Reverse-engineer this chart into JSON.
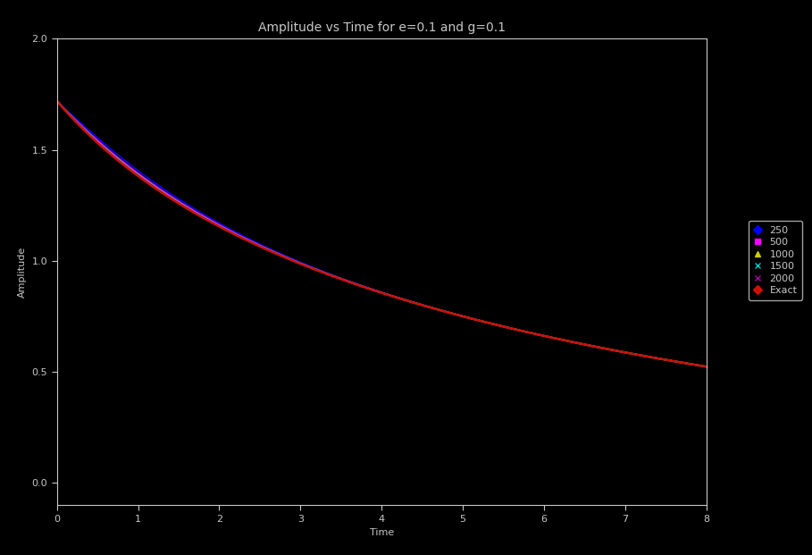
{
  "title": "Amplitude vs Time for e=0.1 and g=0.1",
  "xlabel": "Time",
  "ylabel": "Amplitude",
  "background_color": "#000000",
  "text_color": "#c8c8c8",
  "xlim": [
    0,
    8
  ],
  "ylim": [
    -0.1,
    2.0
  ],
  "yticks": [
    0.0,
    0.5,
    1.0,
    1.5,
    2.0
  ],
  "xticks": [
    0,
    1,
    2,
    3,
    4,
    5,
    6,
    7,
    8
  ],
  "series": [
    {
      "label": "250",
      "color": "#0000ff",
      "lw": 1.2,
      "N": 250
    },
    {
      "label": "500",
      "color": "#ff00ff",
      "lw": 1.2,
      "N": 500
    },
    {
      "label": "1000",
      "color": "#cccc00",
      "lw": 1.2,
      "N": 1000
    },
    {
      "label": "1500",
      "color": "#00cccc",
      "lw": 1.5,
      "N": 1500
    },
    {
      "label": "2000",
      "color": "#aa00aa",
      "lw": 1.2,
      "N": 2000
    },
    {
      "label": "Exact",
      "color": "#cc1100",
      "lw": 1.8,
      "N": -1
    }
  ],
  "legend_colors": [
    "#0000ff",
    "#ff00ff",
    "#cccc00",
    "#00cccc",
    "#aa00aa",
    "#cc1100"
  ],
  "legend_markers": [
    "D",
    "s",
    "^",
    "x",
    "x",
    "D"
  ],
  "legend_labels": [
    "250",
    "500",
    "1000",
    "1500",
    "2000",
    "Exact"
  ],
  "title_fontsize": 10,
  "axis_fontsize": 8,
  "tick_fontsize": 8,
  "legend_fontsize": 8,
  "e": 0.1,
  "g": 0.1,
  "A0": 1.72
}
